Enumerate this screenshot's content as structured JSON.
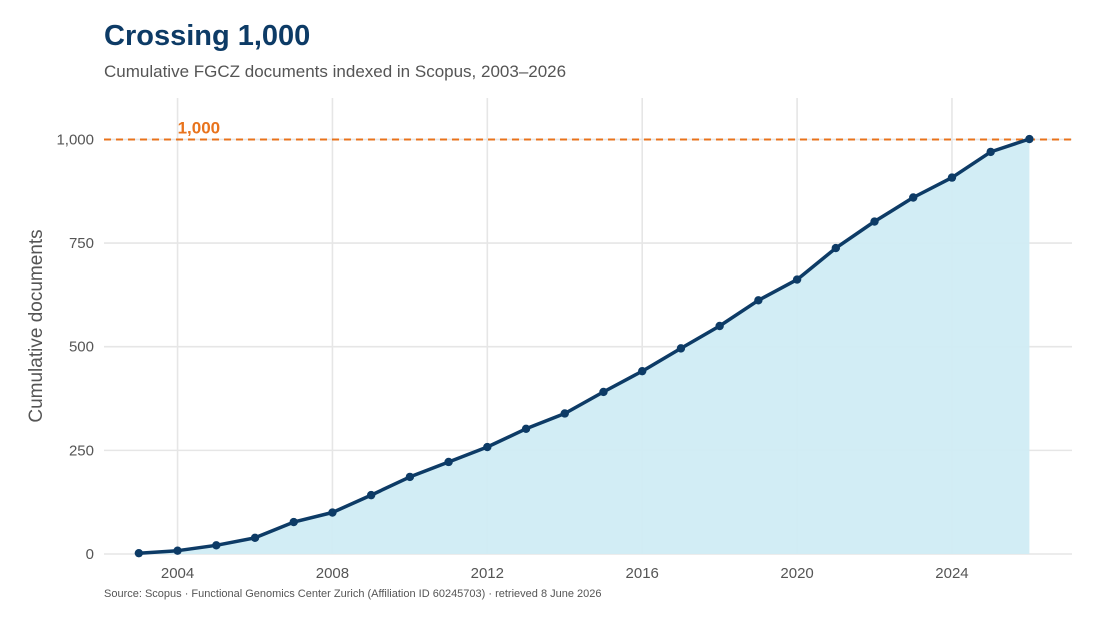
{
  "header": {
    "title": "Crossing 1,000",
    "subtitle": "Cumulative FGCZ documents indexed in Scopus, 2003–2026"
  },
  "footer": {
    "caption": "Source: Scopus · Functional Genomics Center Zurich (Affiliation ID 60245703) · retrieved 8 June 2026"
  },
  "colors": {
    "line": "#0d3b66",
    "area": "#d0ecf4",
    "reference": "#e8731c",
    "grid": "#e6e6e6",
    "text": "#555555"
  },
  "chart_data": {
    "type": "area",
    "title": "Crossing 1,000",
    "subtitle": "Cumulative FGCZ documents indexed in Scopus, 2003–2026",
    "xlabel": "",
    "ylabel": "Cumulative documents",
    "x": [
      2003,
      2004,
      2005,
      2006,
      2007,
      2008,
      2009,
      2010,
      2011,
      2012,
      2013,
      2014,
      2015,
      2016,
      2017,
      2018,
      2019,
      2020,
      2021,
      2022,
      2023,
      2024,
      2025,
      2026
    ],
    "series": [
      {
        "values": [
          2,
          8,
          21,
          39,
          77,
          100,
          142,
          186,
          222,
          258,
          302,
          339,
          391,
          441,
          496,
          550,
          612,
          662,
          738,
          802,
          860,
          908,
          970,
          1001
        ]
      }
    ],
    "xlim": [
      2002.1,
      2027.1
    ],
    "ylim": [
      0,
      1100
    ],
    "xticks": [
      {
        "value": 2004,
        "label": "2004"
      },
      {
        "value": 2008,
        "label": "2008"
      },
      {
        "value": 2012,
        "label": "2012"
      },
      {
        "value": 2016,
        "label": "2016"
      },
      {
        "value": 2020,
        "label": "2020"
      },
      {
        "value": 2024,
        "label": "2024"
      }
    ],
    "yticks": [
      {
        "value": 0,
        "label": "0"
      },
      {
        "value": 250,
        "label": "250"
      },
      {
        "value": 500,
        "label": "500"
      },
      {
        "value": 750,
        "label": "750"
      },
      {
        "value": 1000,
        "label": "1,000"
      }
    ],
    "reference_line": {
      "value": 1000,
      "label": "1,000",
      "label_x": 2004
    },
    "grid": true,
    "legend": "none"
  }
}
